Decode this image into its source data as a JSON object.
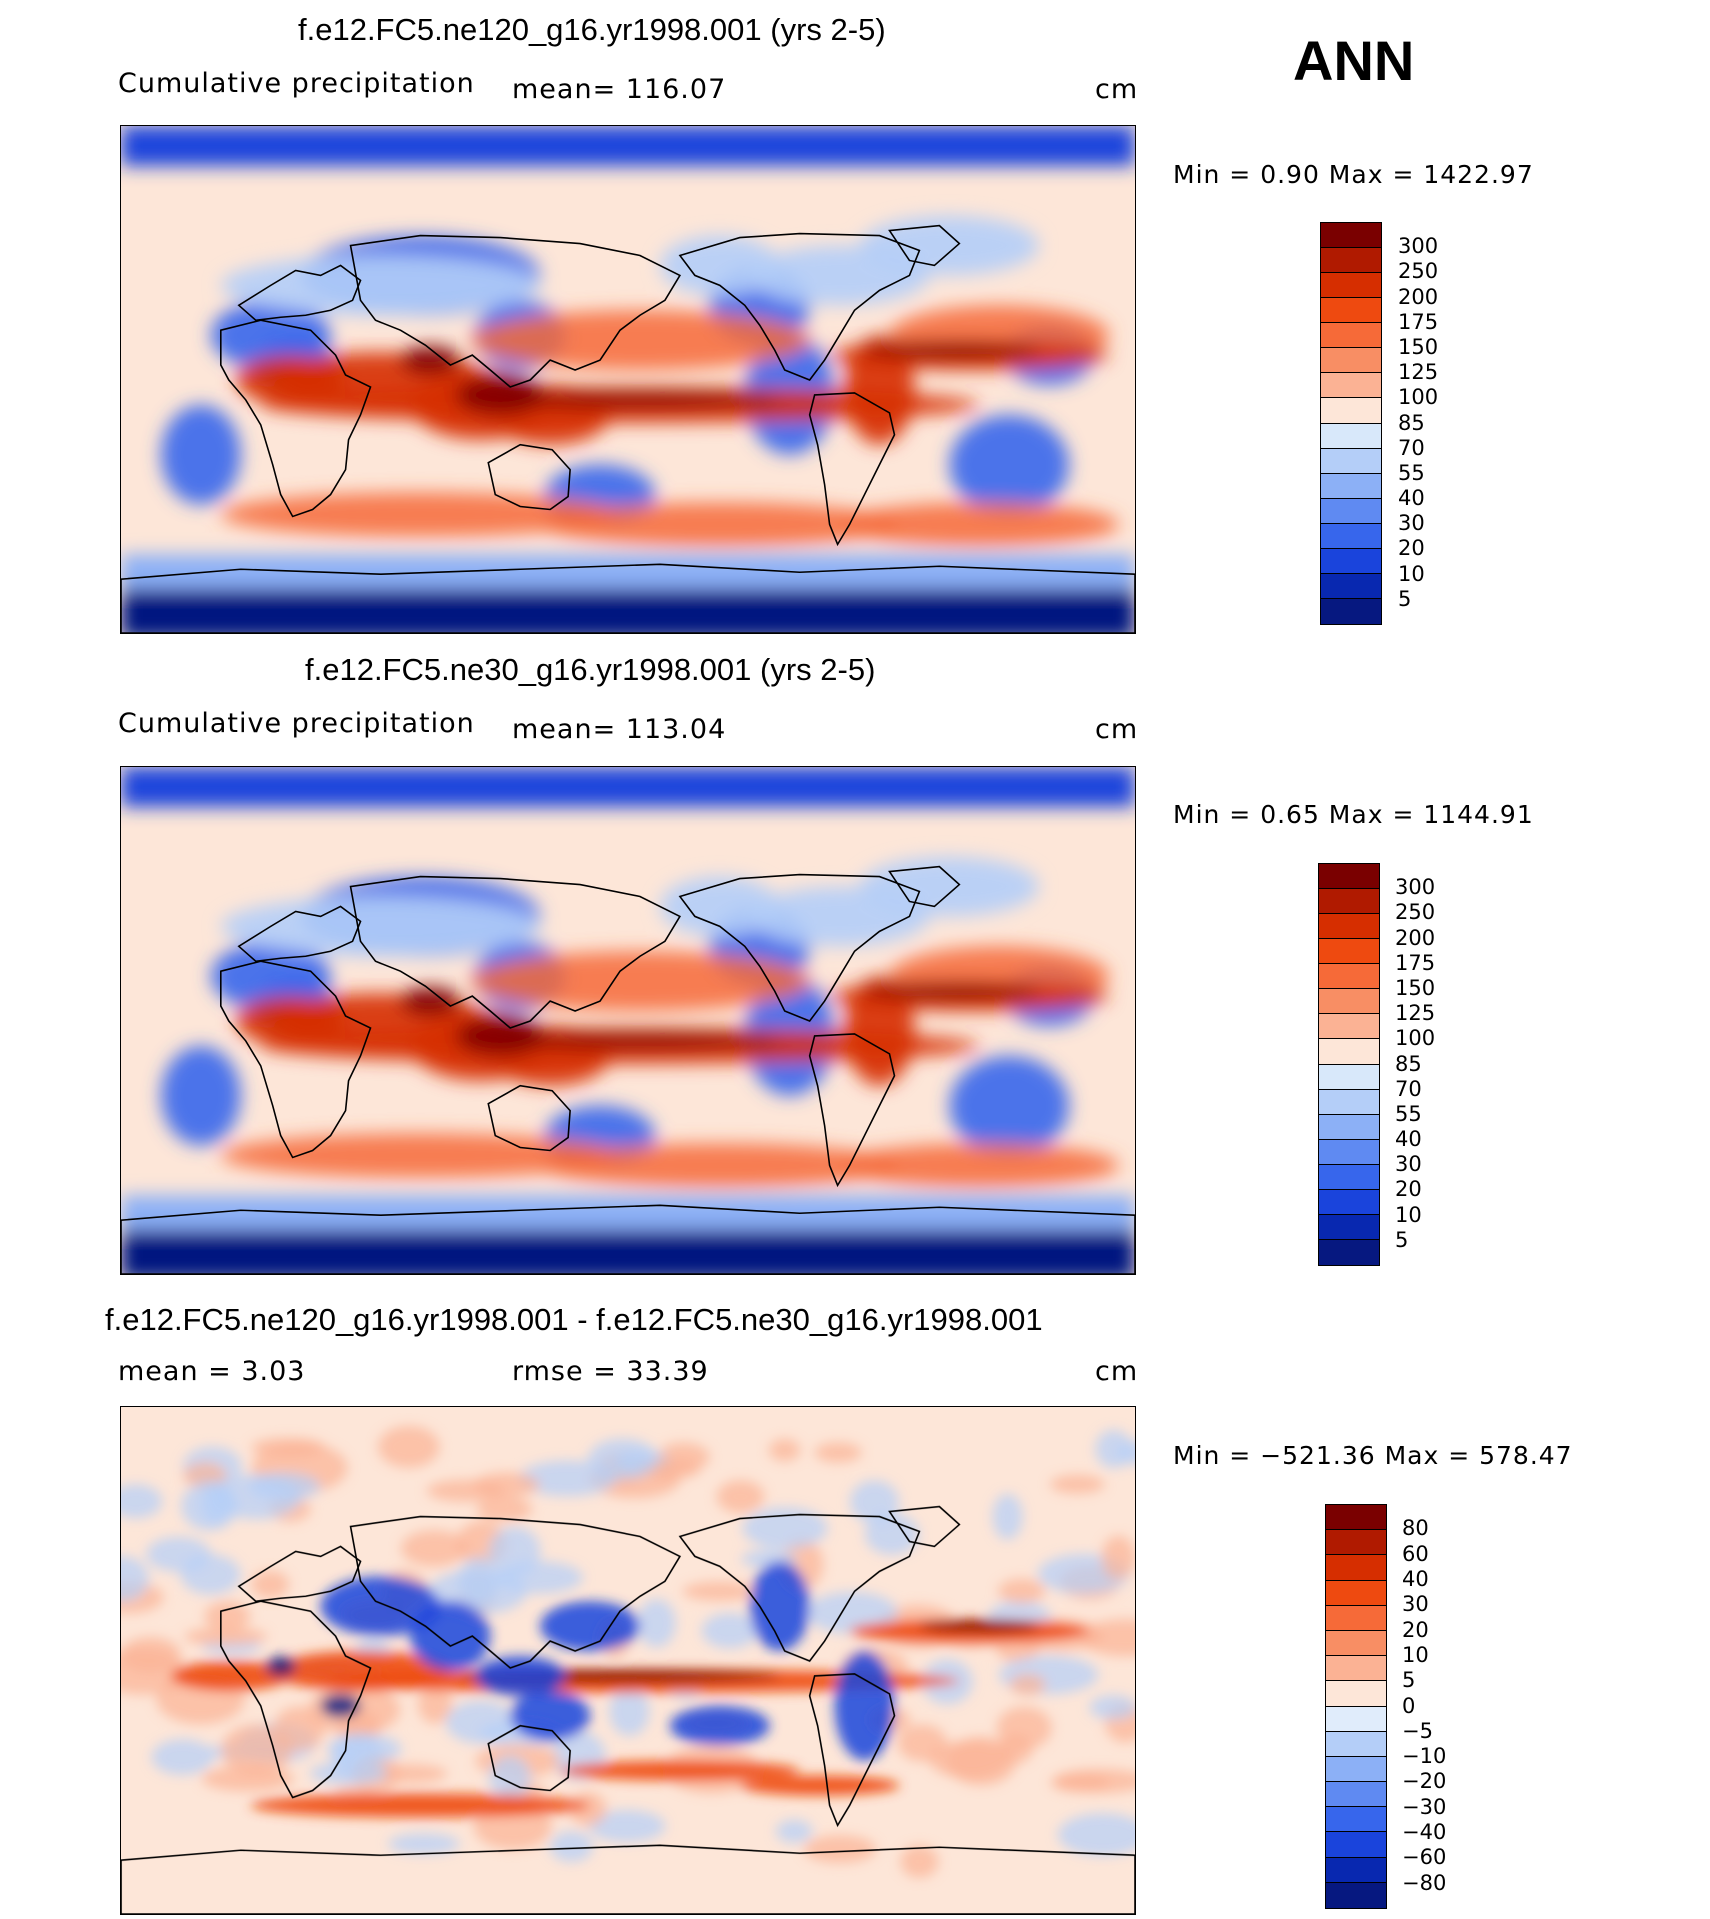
{
  "season": "ANN",
  "panels": [
    {
      "title": "f.e12.FC5.ne120_g16.yr1998.001 (yrs 2-5)",
      "left_label": "Cumulative precipitation",
      "mid_label": "mean=  116.07",
      "units": "cm",
      "minmax": "Min  =     0.90  Max  =  1422.97",
      "type": "precip"
    },
    {
      "title": "f.e12.FC5.ne30_g16.yr1998.001 (yrs 2-5)",
      "left_label": "Cumulative precipitation",
      "mid_label": "mean=  113.04",
      "units": "cm",
      "minmax": "Min  =     0.65  Max  =  1144.91",
      "type": "precip"
    },
    {
      "title": "f.e12.FC5.ne120_g16.yr1998.001 - f.e12.FC5.ne30_g16.yr1998.001",
      "left_label": "mean  =     3.03",
      "mid_label": "rmse  =    33.39",
      "units": "cm",
      "minmax": "Min  = −521.36  Max  =  578.47",
      "type": "diff"
    }
  ],
  "colorbars": {
    "precip": {
      "levels": [
        "300",
        "250",
        "200",
        "175",
        "150",
        "125",
        "100",
        "85",
        "70",
        "55",
        "40",
        "30",
        "20",
        "10",
        "5"
      ],
      "colors": [
        "#7a0000",
        "#b01a00",
        "#d62e00",
        "#ee4a10",
        "#f66a38",
        "#f88e64",
        "#fbb294",
        "#fde6d8",
        "#d8e8fa",
        "#b4cef8",
        "#8cb0f6",
        "#5f8af2",
        "#3766ec",
        "#1a44dc",
        "#0828b0",
        "#061880"
      ]
    },
    "diff": {
      "levels": [
        "80",
        "60",
        "40",
        "30",
        "20",
        "10",
        "5",
        "0",
        "−5",
        "−10",
        "−20",
        "−30",
        "−40",
        "−60",
        "−80"
      ],
      "colors": [
        "#7a0000",
        "#b01a00",
        "#d62e00",
        "#ee4a10",
        "#f66a38",
        "#f88e64",
        "#fbb294",
        "#fde6d8",
        "#e0ecfb",
        "#b4cef8",
        "#8cb0f6",
        "#5f8af2",
        "#3766ec",
        "#1a44dc",
        "#0828b0",
        "#061880"
      ]
    }
  }
}
